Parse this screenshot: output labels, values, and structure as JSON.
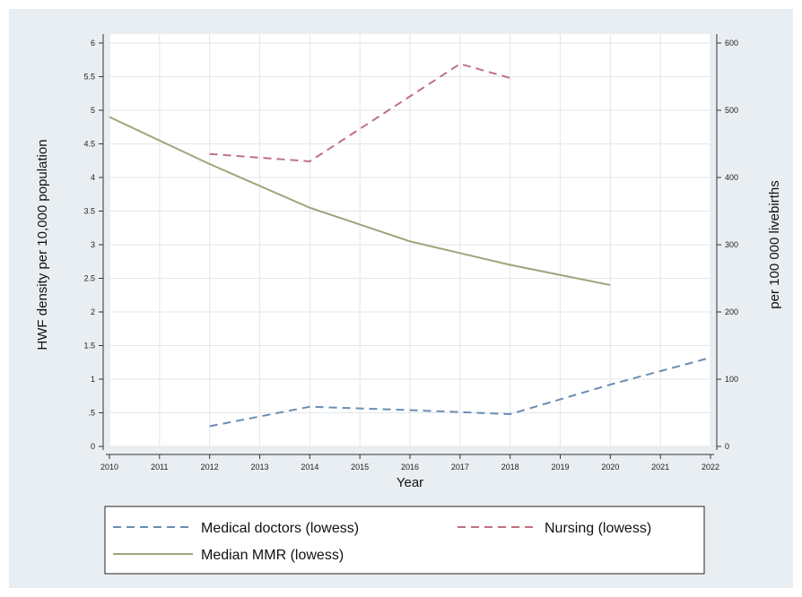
{
  "chart_data": {
    "type": "line",
    "title": "",
    "xlabel": "Year",
    "ylabel": "HWF density per 10,000 population",
    "y2label": "per 100 000 livebirths",
    "xlim": [
      2010,
      2022
    ],
    "ylim": [
      0,
      6
    ],
    "y2lim": [
      0,
      600
    ],
    "grid": true,
    "legend_position": "bottom",
    "x_ticks": [
      "2010",
      "2011",
      "2012",
      "2013",
      "2014",
      "2015",
      "2016",
      "2017",
      "2018",
      "2019",
      "2020",
      "2021",
      "2022"
    ],
    "y_ticks": [
      "0",
      ".5",
      "1",
      "1.5",
      "2",
      "2.5",
      "3",
      "3.5",
      "4",
      "4.5",
      "5",
      "5.5",
      "6"
    ],
    "y2_ticks": [
      "0",
      "100",
      "200",
      "300",
      "400",
      "500",
      "600"
    ],
    "series": [
      {
        "name": "Medical doctors (lowess)",
        "axis": "left",
        "style": "dashed",
        "color": "#6a8db2",
        "x": [
          2012,
          2014,
          2016,
          2018,
          2020,
          2022
        ],
        "y": [
          0.3,
          0.59,
          0.54,
          0.48,
          0.92,
          1.32
        ]
      },
      {
        "name": "Nursing (lowess)",
        "axis": "left",
        "style": "dashed",
        "color": "#c0717f",
        "x": [
          2012,
          2014,
          2017,
          2018
        ],
        "y": [
          4.35,
          4.24,
          5.69,
          5.48
        ]
      },
      {
        "name": "Median MMR (lowess)",
        "axis": "right",
        "style": "solid",
        "color": "#9ca77a",
        "x": [
          2010,
          2012,
          2014,
          2016,
          2018,
          2020
        ],
        "y": [
          490,
          420,
          355,
          305,
          270,
          240
        ]
      }
    ]
  }
}
